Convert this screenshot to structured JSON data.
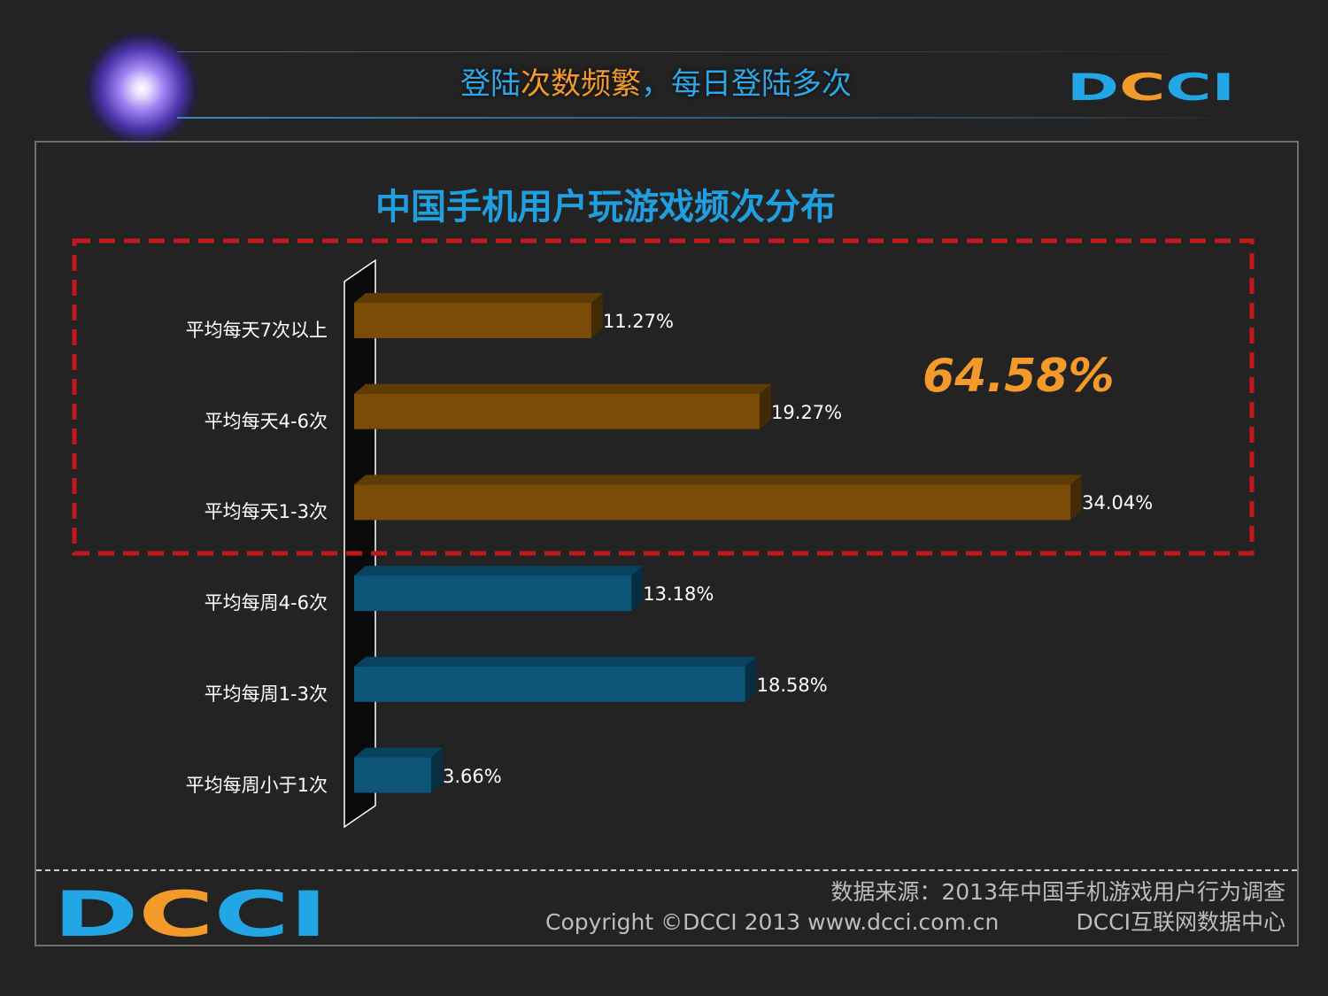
{
  "header": {
    "title_part1": "登陆",
    "title_part2": "次数频繁",
    "title_part3": "，每日登陆多次",
    "logo": "DCCI"
  },
  "chart_data": {
    "type": "bar",
    "orientation": "horizontal",
    "title": "中国手机用户玩游戏频次分布",
    "categories": [
      "平均每天7次以上",
      "平均每天4-6次",
      "平均每天1-3次",
      "平均每周4-6次",
      "平均每周1-3次",
      "平均每周小于1次"
    ],
    "values": [
      11.27,
      19.27,
      34.04,
      13.18,
      18.58,
      3.66
    ],
    "value_labels": [
      "11.27%",
      "19.27%",
      "34.04%",
      "13.18%",
      "18.58%",
      "3.66%"
    ],
    "bar_colors": [
      "#7a4c08",
      "#7a4c08",
      "#7a4c08",
      "#0c5578",
      "#0c5578",
      "#0c5578"
    ],
    "unit": "%",
    "highlight": {
      "categories": [
        "平均每天7次以上",
        "平均每天4-6次",
        "平均每天1-3次"
      ],
      "total_label": "64.58%",
      "border_color": "#c0181b"
    }
  },
  "footer": {
    "logo": "DCCI",
    "source": "数据来源：2013年中国手机游戏用户行为调查",
    "copyright": "Copyright ©DCCI 2013 www.dcci.com.cn",
    "center": "DCCI互联网数据中心"
  },
  "colors": {
    "background": "#232323",
    "accent_blue": "#2fa6e6",
    "accent_orange": "#f39a2a"
  }
}
